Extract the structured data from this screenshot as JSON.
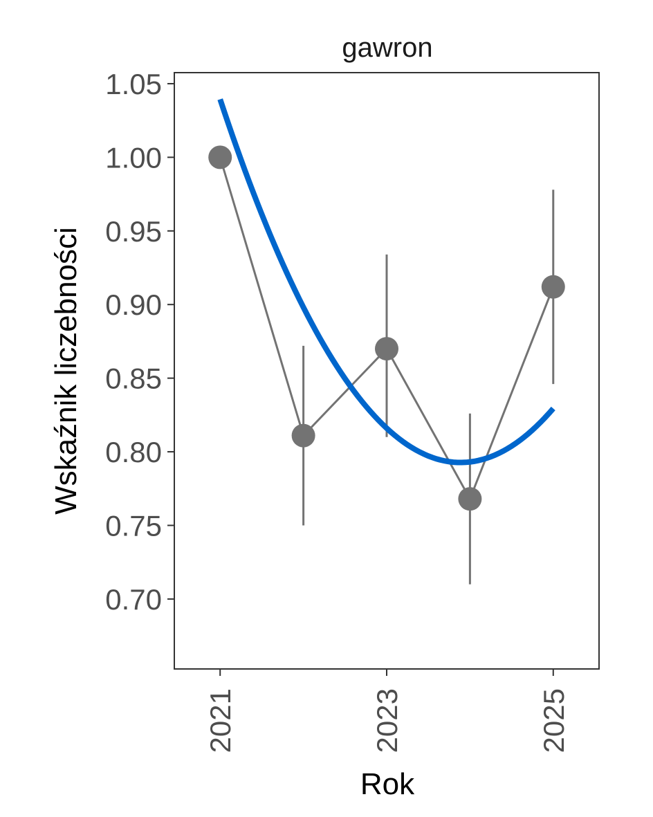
{
  "chart_data": {
    "type": "line",
    "title": "gawron",
    "xlabel": "Rok",
    "ylabel": "Wskaźnik liczebności",
    "xlim": [
      2020.45,
      2025.55
    ],
    "ylim": [
      0.6525,
      1.0575
    ],
    "x_ticks": [
      2021,
      2023,
      2025
    ],
    "y_ticks": [
      0.7,
      0.75,
      0.8,
      0.85,
      0.9,
      0.95,
      1.0,
      1.05
    ],
    "y_tick_labels": [
      "0.70",
      "0.75",
      "0.80",
      "0.85",
      "0.90",
      "0.95",
      "1.00",
      "1.05"
    ],
    "grid": false,
    "series": [
      {
        "x": [
          2021,
          2022,
          2023,
          2024,
          2025
        ],
        "y": [
          1.0,
          0.811,
          0.87,
          0.768,
          0.912
        ],
        "error_low": [
          null,
          0.75,
          0.81,
          0.71,
          0.846
        ],
        "error_high": [
          null,
          0.872,
          0.934,
          0.826,
          0.978
        ],
        "color": "#737373"
      },
      {
        "type": "trend",
        "x": [
          2021,
          2025
        ],
        "quadratic_coefficients": [
          0.816,
          -0.0525,
          0.0296
        ],
        "color": "#0066cc"
      }
    ]
  }
}
